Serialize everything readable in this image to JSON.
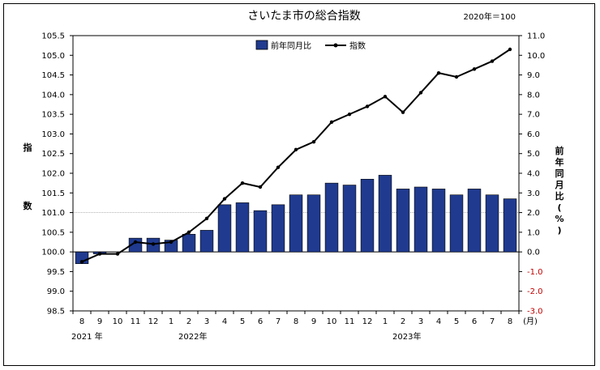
{
  "chart_data": {
    "type": "bar+line",
    "title": "さいたま市の総合指数",
    "base_note": "2020年＝100",
    "legend": {
      "bar_label": "前年同月比",
      "line_label": "指数",
      "placement": "top-center"
    },
    "left_axis": {
      "label": "指数",
      "label_chars": [
        "指",
        "数"
      ],
      "range": [
        98.5,
        105.5
      ],
      "ticks": [
        "98.5",
        "99.0",
        "99.5",
        "100.0",
        "100.5",
        "101.0",
        "101.5",
        "102.0",
        "102.5",
        "103.0",
        "103.5",
        "104.0",
        "104.5",
        "105.0",
        "105.5"
      ]
    },
    "right_axis": {
      "label": "前年同月比(%)",
      "label_chars": [
        "前",
        "年",
        "同",
        "月",
        "比",
        "(",
        "%",
        ")"
      ],
      "range": [
        -3.0,
        11.0
      ],
      "ticks": [
        {
          "text": "-3.0",
          "negative": true
        },
        {
          "text": "-2.0",
          "negative": true
        },
        {
          "text": "-1.0",
          "negative": true
        },
        {
          "text": "0.0",
          "negative": false
        },
        {
          "text": "1.0",
          "negative": false
        },
        {
          "text": "2.0",
          "negative": false
        },
        {
          "text": "3.0",
          "negative": false
        },
        {
          "text": "4.0",
          "negative": false
        },
        {
          "text": "5.0",
          "negative": false
        },
        {
          "text": "6.0",
          "negative": false
        },
        {
          "text": "7.0",
          "negative": false
        },
        {
          "text": "8.0",
          "negative": false
        },
        {
          "text": "9.0",
          "negative": false
        },
        {
          "text": "10.0",
          "negative": false
        },
        {
          "text": "11.0",
          "negative": false
        }
      ],
      "negative_color": "#c00000"
    },
    "categories": [
      "8",
      "9",
      "10",
      "11",
      "12",
      "1",
      "2",
      "3",
      "4",
      "5",
      "6",
      "7",
      "8",
      "9",
      "10",
      "11",
      "12",
      "1",
      "2",
      "3",
      "4",
      "5",
      "6",
      "7",
      "8"
    ],
    "month_unit": "(月)",
    "year_labels": [
      {
        "text": "2021 年",
        "at_index": 0
      },
      {
        "text": "2022年",
        "at_index": 6
      },
      {
        "text": "2023年",
        "at_index": 18
      }
    ],
    "series": [
      {
        "name": "前年同月比",
        "kind": "bar",
        "axis": "right",
        "color": "#1f3a8f",
        "values": [
          -0.6,
          -0.1,
          0.0,
          0.7,
          0.7,
          0.6,
          0.9,
          1.1,
          2.4,
          2.5,
          2.1,
          2.4,
          2.9,
          2.9,
          3.5,
          3.4,
          3.7,
          3.9,
          3.2,
          3.3,
          3.2,
          2.9,
          3.2,
          2.9,
          2.7
        ]
      },
      {
        "name": "指数",
        "kind": "line",
        "axis": "left",
        "color": "#000000",
        "values": [
          99.75,
          99.95,
          99.95,
          100.25,
          100.2,
          100.25,
          100.5,
          100.85,
          101.35,
          101.75,
          101.65,
          102.15,
          102.6,
          102.8,
          103.3,
          103.5,
          103.7,
          103.95,
          103.55,
          104.05,
          104.55,
          104.45,
          104.65,
          104.85,
          105.15
        ]
      }
    ],
    "grid": {
      "horizontal": false,
      "vertical": false,
      "reference_lines_at_left": [
        100.0,
        101.0
      ]
    }
  }
}
